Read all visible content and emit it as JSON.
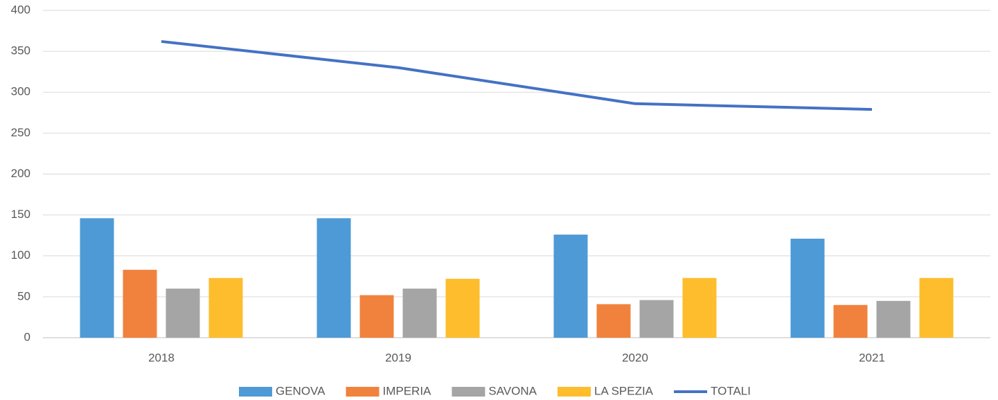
{
  "chart_data": {
    "type": "bar",
    "categories": [
      "2018",
      "2019",
      "2020",
      "2021"
    ],
    "series": [
      {
        "name": "GENOVA",
        "color": "#4e9ad6",
        "values": [
          146,
          146,
          126,
          121
        ]
      },
      {
        "name": "IMPERIA",
        "color": "#f0823d",
        "values": [
          83,
          52,
          41,
          40
        ]
      },
      {
        "name": "SAVONA",
        "color": "#a5a5a5",
        "values": [
          60,
          60,
          46,
          45
        ]
      },
      {
        "name": "LA SPEZIA",
        "color": "#fdbd2c",
        "values": [
          73,
          72,
          73,
          73
        ]
      },
      {
        "name": "TOTALI",
        "color": "#4472c4",
        "type": "line",
        "values": [
          362,
          330,
          286,
          279
        ]
      }
    ],
    "ylim": [
      0,
      400
    ],
    "yticks": [
      0,
      50,
      100,
      150,
      200,
      250,
      300,
      350,
      400
    ],
    "grid": true,
    "legend": "bottom"
  }
}
